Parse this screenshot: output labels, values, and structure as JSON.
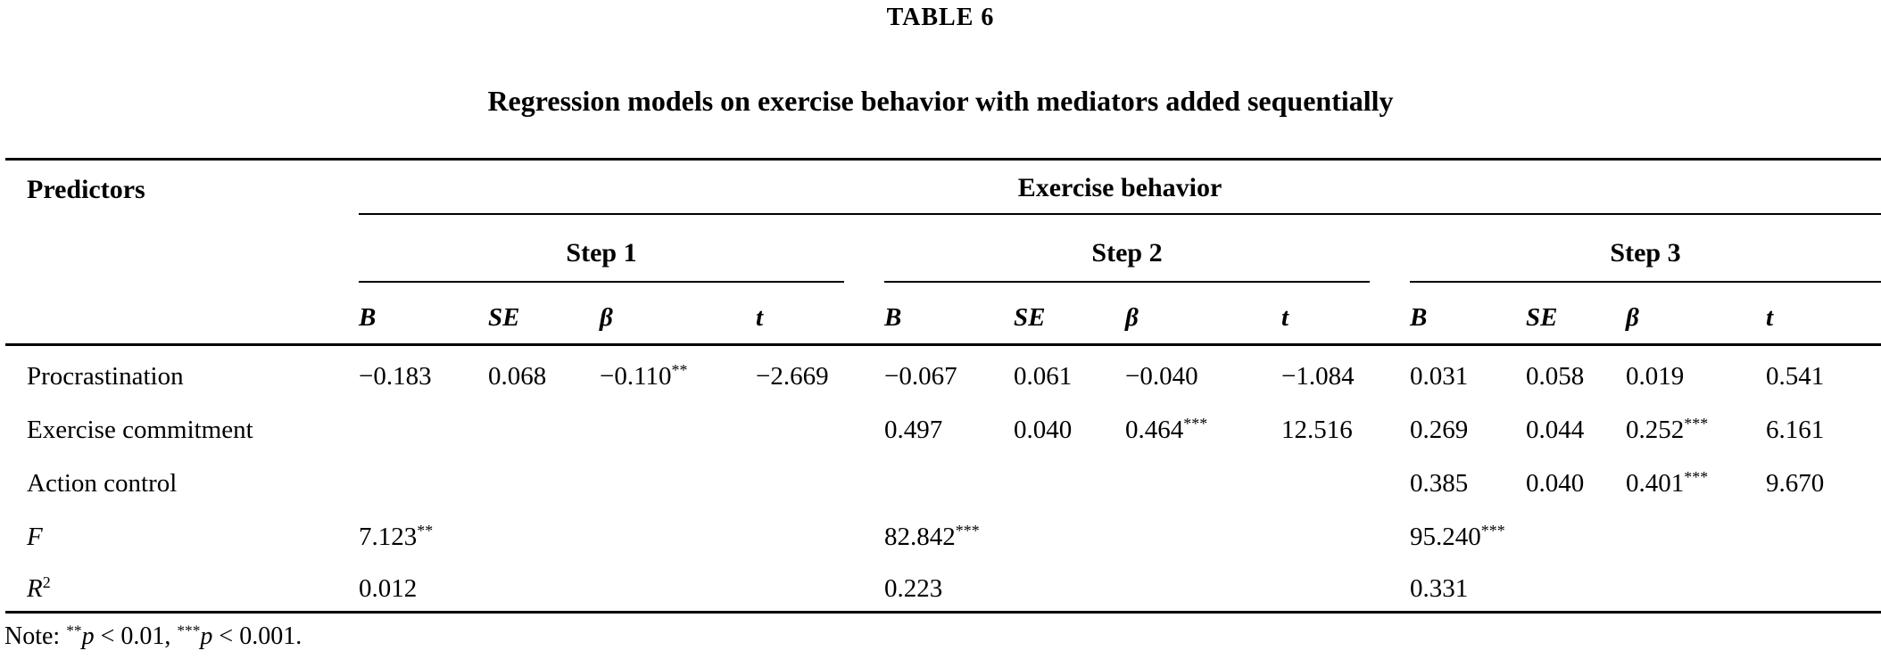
{
  "page": {
    "title": "TABLE 6",
    "subtitle": "Regression models on exercise behavior with mediators added sequentially"
  },
  "table": {
    "predictors_header": "Predictors",
    "dv_header": "Exercise behavior",
    "steps": [
      "Step 1",
      "Step 2",
      "Step 3"
    ],
    "stat_headers": [
      "B",
      "SE",
      "β",
      "t"
    ],
    "rows": [
      {
        "label": [
          {
            "t": "Procrastination",
            "s": "p"
          }
        ],
        "cells": [
          "−0.183",
          "0.068",
          "−0.110**",
          "−2.669",
          "−0.067",
          "0.061",
          "−0.040",
          "−1.084",
          "0.031",
          "0.058",
          "0.019",
          "0.541"
        ]
      },
      {
        "label": [
          {
            "t": "Exercise commitment",
            "s": "p"
          }
        ],
        "cells": [
          "",
          "",
          "",
          "",
          "0.497",
          "0.040",
          "0.464***",
          "12.516",
          "0.269",
          "0.044",
          "0.252***",
          "6.161"
        ]
      },
      {
        "label": [
          {
            "t": "Action control",
            "s": "p"
          }
        ],
        "cells": [
          "",
          "",
          "",
          "",
          "",
          "",
          "",
          "",
          "0.385",
          "0.040",
          "0.401***",
          "9.670"
        ]
      },
      {
        "label": [
          {
            "t": "F",
            "s": "i"
          }
        ],
        "cells": [
          "7.123**",
          "",
          "",
          "",
          "82.842***",
          "",
          "",
          "",
          "95.240***",
          "",
          "",
          ""
        ]
      },
      {
        "label": [
          {
            "t": "R",
            "s": "i"
          },
          {
            "t": "2",
            "s": "sup"
          }
        ],
        "cells": [
          "0.012",
          "",
          "",
          "",
          "0.223",
          "",
          "",
          "",
          "0.331",
          "",
          "",
          ""
        ]
      }
    ],
    "note": [
      {
        "t": "Note: ",
        "s": "p"
      },
      {
        "t": "**",
        "s": "sup"
      },
      {
        "t": "p",
        "s": "i"
      },
      {
        "t": " < 0.01, ",
        "s": "p"
      },
      {
        "t": "***",
        "s": "sup"
      },
      {
        "t": "p",
        "s": "i"
      },
      {
        "t": " < 0.001.",
        "s": "p"
      }
    ]
  }
}
